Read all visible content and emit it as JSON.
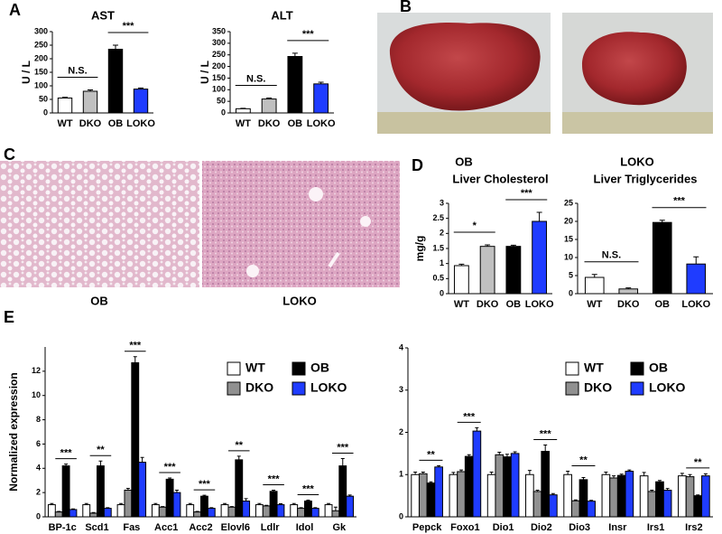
{
  "panel_letters": [
    "A",
    "B",
    "C",
    "D",
    "E"
  ],
  "photo_labels_b": [
    "OB",
    "LOKO"
  ],
  "photo_labels_c": [
    "OB",
    "LOKO"
  ],
  "chart_data": [
    {
      "type": "bar",
      "title": "AST",
      "y_label": "U / L",
      "categories": [
        "WT",
        "DKO",
        "OB",
        "LOKO"
      ],
      "values": [
        55,
        80,
        235,
        88
      ],
      "errors": [
        3,
        5,
        15,
        4
      ],
      "colors": [
        "#ffffff",
        "#c0c0c0",
        "#000000",
        "#1f3cff"
      ],
      "ylim": [
        0,
        300
      ],
      "yticks": [
        0,
        50,
        100,
        150,
        200,
        250,
        300
      ],
      "annotations": [
        "N.S.",
        "***"
      ]
    },
    {
      "type": "bar",
      "title": "ALT",
      "y_label": "U / L",
      "categories": [
        "WT",
        "DKO",
        "OB",
        "LOKO"
      ],
      "values": [
        18,
        60,
        243,
        125
      ],
      "errors": [
        2,
        4,
        14,
        7
      ],
      "colors": [
        "#ffffff",
        "#c0c0c0",
        "#000000",
        "#1f3cff"
      ],
      "ylim": [
        0,
        350
      ],
      "yticks": [
        0,
        50,
        100,
        150,
        200,
        250,
        300,
        350
      ],
      "annotations": [
        "N.S.",
        "***"
      ]
    },
    {
      "type": "bar",
      "title": "Liver Cholesterol",
      "y_label": "mg/g",
      "categories": [
        "WT",
        "DKO",
        "OB",
        "LOKO"
      ],
      "values": [
        0.93,
        1.57,
        1.57,
        2.4
      ],
      "errors": [
        0.05,
        0.05,
        0.04,
        0.3
      ],
      "colors": [
        "#ffffff",
        "#c0c0c0",
        "#000000",
        "#1f3cff"
      ],
      "ylim": [
        0,
        3
      ],
      "yticks": [
        0,
        0.5,
        1,
        1.5,
        2,
        2.5,
        3
      ],
      "annotations": [
        "*",
        "***"
      ]
    },
    {
      "type": "bar",
      "title": "Liver Triglycerides",
      "categories": [
        "WT",
        "DKO",
        "OB",
        "LOKO"
      ],
      "values": [
        4.5,
        1.3,
        19.7,
        8.2
      ],
      "errors": [
        0.8,
        0.3,
        0.6,
        2.0
      ],
      "colors": [
        "#ffffff",
        "#c0c0c0",
        "#000000",
        "#1f3cff"
      ],
      "ylim": [
        0,
        25
      ],
      "yticks": [
        0,
        5,
        10,
        15,
        20,
        25
      ],
      "annotations": [
        "N.S.",
        "***"
      ]
    },
    {
      "type": "grouped_bar",
      "y_label": "Normalized expression",
      "categories": [
        "BP-1c",
        "Scd1",
        "Fas",
        "Acc1",
        "Acc2",
        "Elovl6",
        "Ldlr",
        "Idol",
        "Gk"
      ],
      "series": [
        {
          "name": "WT",
          "color": "#ffffff",
          "values": [
            1.0,
            1.0,
            1.0,
            1.0,
            1.0,
            1.0,
            1.0,
            1.0,
            1.0
          ],
          "errors": [
            0.1,
            0.1,
            0.1,
            0.1,
            0.1,
            0.1,
            0.1,
            0.1,
            0.1
          ]
        },
        {
          "name": "DKO",
          "color": "#909090",
          "values": [
            0.4,
            0.3,
            2.2,
            0.8,
            0.4,
            0.8,
            0.9,
            0.7,
            0.5
          ],
          "errors": [
            0.05,
            0.05,
            0.15,
            0.05,
            0.05,
            0.05,
            0.05,
            0.05,
            0.3
          ]
        },
        {
          "name": "OB",
          "color": "#000000",
          "values": [
            4.2,
            4.2,
            12.7,
            3.1,
            1.7,
            4.7,
            2.1,
            1.3,
            4.2
          ],
          "errors": [
            0.15,
            0.4,
            0.5,
            0.1,
            0.08,
            0.3,
            0.1,
            0.08,
            0.6
          ]
        },
        {
          "name": "LOKO",
          "color": "#1f3cff",
          "values": [
            0.6,
            0.7,
            4.5,
            2.0,
            0.7,
            1.3,
            1.0,
            0.7,
            1.7
          ],
          "errors": [
            0.05,
            0.05,
            0.4,
            0.2,
            0.05,
            0.2,
            0.08,
            0.05,
            0.1
          ]
        }
      ],
      "ylim": [
        0,
        14
      ],
      "yticks": [
        0,
        2,
        4,
        6,
        8,
        10,
        12
      ],
      "significance": [
        "***",
        "**",
        "***",
        "***",
        "***",
        "**",
        "***",
        "***",
        "***"
      ]
    },
    {
      "type": "grouped_bar",
      "categories": [
        "Pepck",
        "Foxo1",
        "Dio1",
        "Dio2",
        "Dio3",
        "Insr",
        "Irs1",
        "Irs2"
      ],
      "series": [
        {
          "name": "WT",
          "color": "#ffffff",
          "values": [
            1.0,
            1.0,
            1.0,
            1.0,
            1.0,
            1.0,
            0.97,
            0.97
          ],
          "errors": [
            0.06,
            0.05,
            0.06,
            0.1,
            0.08,
            0.06,
            0.08,
            0.06
          ]
        },
        {
          "name": "DKO",
          "color": "#909090",
          "values": [
            1.02,
            1.07,
            1.47,
            0.6,
            0.38,
            0.92,
            0.6,
            0.95
          ],
          "errors": [
            0.04,
            0.04,
            0.06,
            0.03,
            0.02,
            0.05,
            0.03,
            0.05
          ]
        },
        {
          "name": "OB",
          "color": "#000000",
          "values": [
            0.8,
            1.43,
            1.42,
            1.55,
            0.88,
            0.98,
            0.83,
            0.5
          ],
          "errors": [
            0.03,
            0.04,
            0.06,
            0.15,
            0.05,
            0.03,
            0.03,
            0.02
          ]
        },
        {
          "name": "LOKO",
          "color": "#1f3cff",
          "values": [
            1.18,
            2.03,
            1.5,
            0.52,
            0.37,
            1.08,
            0.63,
            0.97
          ],
          "errors": [
            0.03,
            0.08,
            0.04,
            0.03,
            0.02,
            0.03,
            0.04,
            0.05
          ]
        }
      ],
      "ylim": [
        0,
        4
      ],
      "yticks": [
        0,
        1,
        2,
        3,
        4
      ],
      "significance": [
        "**",
        "***",
        null,
        "***",
        "**",
        null,
        null,
        "**"
      ]
    }
  ]
}
